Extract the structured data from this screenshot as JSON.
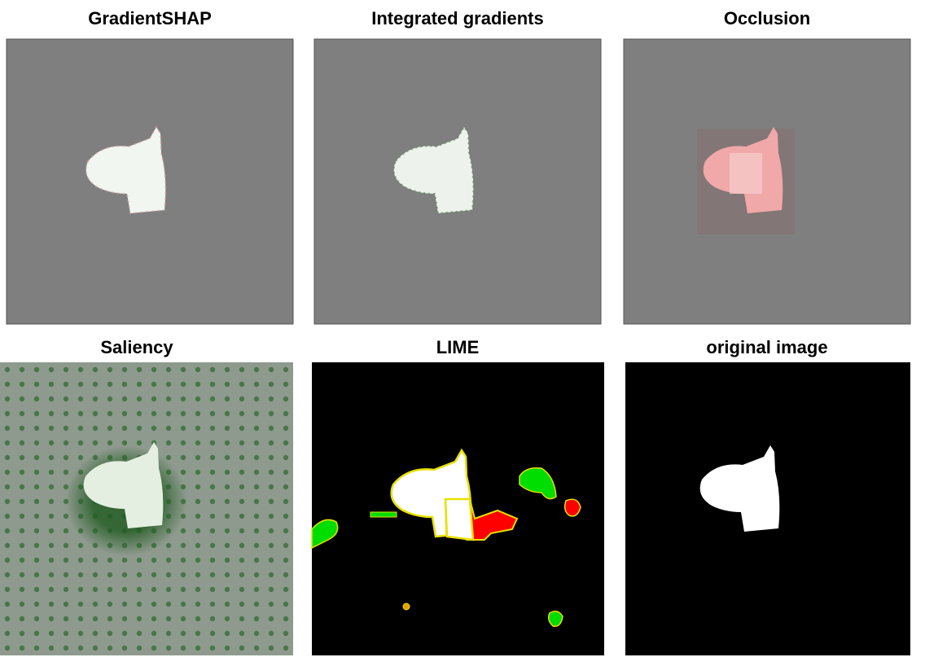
{
  "panels": [
    {
      "title": "GradientSHAP"
    },
    {
      "title": "Integrated gradients"
    },
    {
      "title": "Occlusion"
    },
    {
      "title": "Saliency"
    },
    {
      "title": "LIME"
    },
    {
      "title": "original image"
    }
  ]
}
